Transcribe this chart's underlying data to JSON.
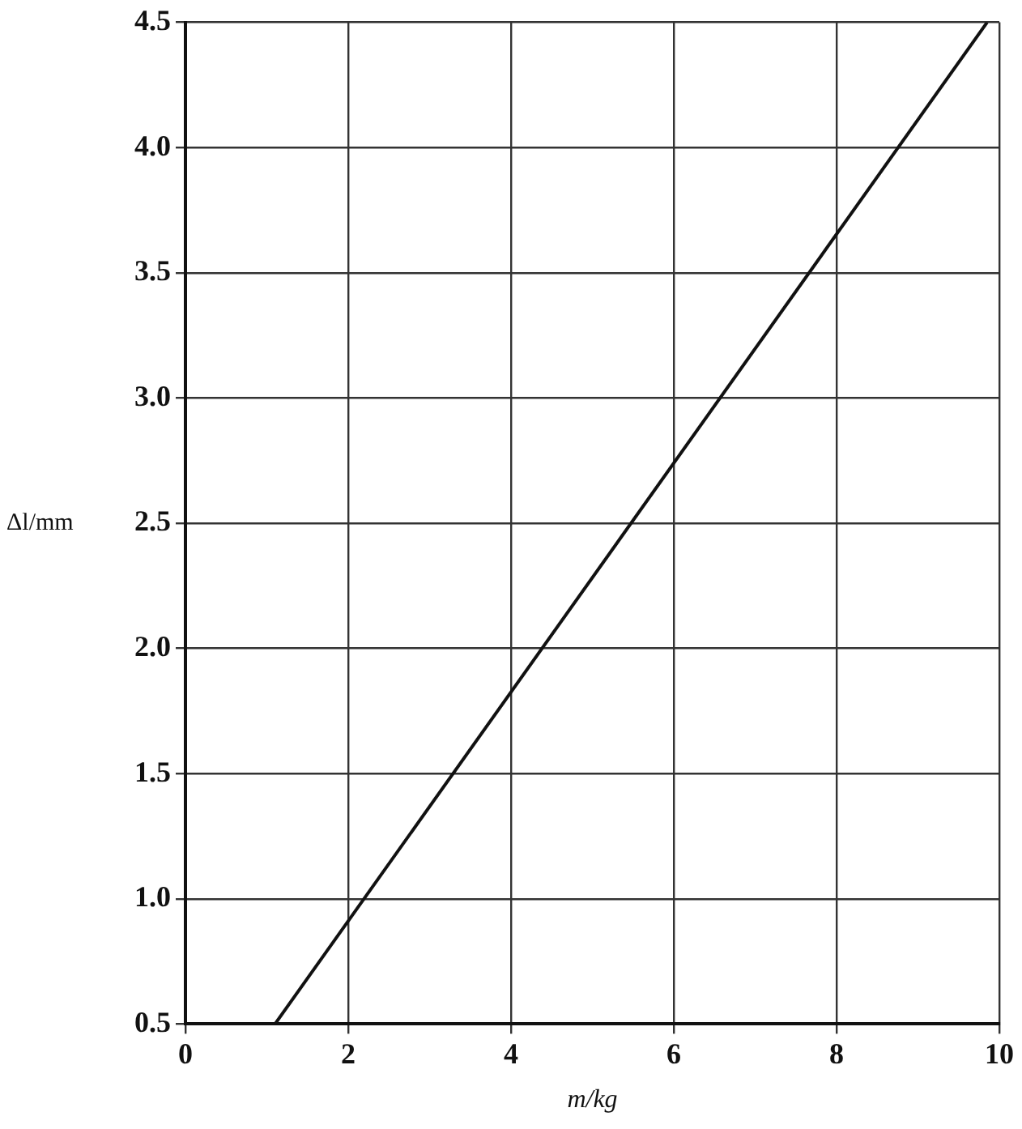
{
  "chart_data": {
    "type": "line",
    "xlabel": "m/kg",
    "ylabel": "Δl/mm",
    "series": [
      {
        "color": "#111111",
        "x": [
          1.1,
          9.85
        ],
        "values": [
          0.5,
          4.5
        ]
      }
    ],
    "xlim": [
      0,
      10
    ],
    "ylim": [
      0.5,
      4.5
    ],
    "xticks": [
      0,
      2,
      4,
      6,
      8,
      10
    ],
    "yticks": [
      {
        "value": 0.5,
        "label": "0.5"
      },
      {
        "value": 1,
        "label": "1.0"
      },
      {
        "value": 1.5,
        "label": "1.5"
      },
      {
        "value": 2,
        "label": "2.0"
      },
      {
        "value": 2.5,
        "label": "2.5"
      },
      {
        "value": 3,
        "label": "3.0"
      },
      {
        "value": 3.5,
        "label": "3.5"
      },
      {
        "value": 4,
        "label": "4.0"
      },
      {
        "value": 4.5,
        "label": "4.5"
      }
    ],
    "grid": true,
    "legend": false,
    "marker": "none",
    "line_style": "solid"
  }
}
